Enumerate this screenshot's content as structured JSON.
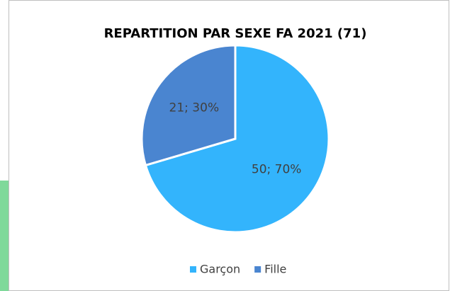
{
  "chart_data": {
    "type": "pie",
    "title": "REPARTITION PAR SEXE FA 2021 (71)",
    "categories": [
      "Garçon",
      "Fille"
    ],
    "values": [
      50,
      21
    ],
    "value_labels": [
      "50; 70%",
      "21; 30%"
    ],
    "colors": [
      "#33b4fc",
      "#4a85d0"
    ],
    "legend": "bottom"
  }
}
